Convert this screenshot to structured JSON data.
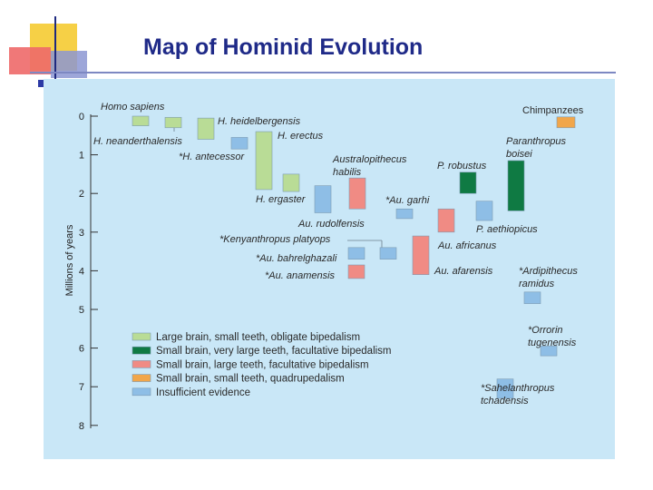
{
  "slide": {
    "title": "Map of Hominid Evolution"
  },
  "chart_data": {
    "type": "diagram",
    "y_axis": {
      "label": "Millions of years",
      "ticks": [
        "0",
        "1",
        "2",
        "3",
        "4",
        "5",
        "6",
        "7",
        "8"
      ]
    },
    "category_colors": {
      "green_light": "#b9dc96",
      "green_dark": "#0f7a43",
      "pink": "#f08b84",
      "orange": "#f1a64a",
      "blue": "#8ebee6"
    },
    "legend": [
      {
        "label": "Large brain, small teeth, obligate bipedalism",
        "color": "green_light"
      },
      {
        "label": "Small brain, very large teeth, facultative bipedalism",
        "color": "green_dark"
      },
      {
        "label": "Small brain, large teeth, facultative bipedalism",
        "color": "pink"
      },
      {
        "label": "Small brain, small teeth, quadrupedalism",
        "color": "orange"
      },
      {
        "label": "Insufficient evidence",
        "color": "blue"
      }
    ],
    "species": [
      {
        "name": "Homo sapiens",
        "color": "green_light",
        "start": 0.25,
        "end": 0.0
      },
      {
        "name": "H. neanderthalensis",
        "color": "green_light",
        "start": 0.3,
        "end": 0.03
      },
      {
        "name": "H. heidelbergensis",
        "color": "green_light",
        "start": 0.6,
        "end": 0.05
      },
      {
        "name": "*H. antecessor",
        "color": "blue",
        "start": 0.85,
        "end": 0.55
      },
      {
        "name": "H. erectus",
        "color": "green_light",
        "start": 1.9,
        "end": 0.4
      },
      {
        "name": "H. ergaster",
        "color": "green_light",
        "start": 1.95,
        "end": 1.5
      },
      {
        "name": "Au. rudolfensis",
        "color": "blue",
        "start": 2.5,
        "end": 1.8
      },
      {
        "name": "Australopithecus habilis",
        "color": "pink",
        "start": 2.4,
        "end": 1.6
      },
      {
        "name": "*Au. garhi",
        "color": "blue",
        "start": 2.65,
        "end": 2.4
      },
      {
        "name": "P. robustus",
        "color": "green_dark",
        "start": 2.0,
        "end": 1.45
      },
      {
        "name": "Paranthropus boisei",
        "color": "green_dark",
        "start": 2.45,
        "end": 1.15
      },
      {
        "name": "P. aethiopicus",
        "color": "blue",
        "start": 2.7,
        "end": 2.2
      },
      {
        "name": "Au. africanus",
        "color": "pink",
        "start": 3.0,
        "end": 2.4
      },
      {
        "name": "*Kenyanthropus platyops",
        "color": "blue",
        "start": 3.7,
        "end": 3.4
      },
      {
        "name": "*Au. bahrelghazali",
        "color": "blue",
        "start": 3.7,
        "end": 3.4
      },
      {
        "name": "Au. afarensis",
        "color": "pink",
        "start": 4.1,
        "end": 3.1
      },
      {
        "name": "*Au. anamensis",
        "color": "pink",
        "start": 4.2,
        "end": 3.85
      },
      {
        "name": "*Ardipithecus ramidus",
        "color": "blue",
        "start": 4.85,
        "end": 4.55
      },
      {
        "name": "*Orrorin tugenensis",
        "color": "blue",
        "start": 6.2,
        "end": 5.95
      },
      {
        "name": "*Sahelanthropus tchadensis",
        "color": "blue",
        "start": 7.3,
        "end": 6.8
      },
      {
        "name": "Chimpanzees",
        "color": "orange",
        "start": 0.3,
        "end": 0.02
      }
    ],
    "labels": {
      "homo_sapiens": "Homo sapiens",
      "h_neanderthalensis": "H. neanderthalensis",
      "h_heidelbergensis": "H. heidelbergensis",
      "h_erectus": "H. erectus",
      "h_antecessor": "*H. antecessor",
      "h_ergaster": "H. ergaster",
      "australopithecus_1": "Australopithecus",
      "australopithecus_2": "habilis",
      "au_rudolfensis": "Au. rudolfensis",
      "au_garhi": "*Au. garhi",
      "p_robustus": "P. robustus",
      "paranthropus_1": "Paranthropus",
      "paranthropus_2": "boisei",
      "p_aethiopicus": "P. aethiopicus",
      "au_africanus": "Au. africanus",
      "kenyanthropus": "*Kenyanthropus platyops",
      "au_bahrelghazali": "*Au. bahrelghazali",
      "au_afarensis": "Au. afarensis",
      "au_anamensis": "*Au. anamensis",
      "ardipithecus_1": "*Ardipithecus",
      "ardipithecus_2": "ramidus",
      "orrorin_1": "*Orrorin",
      "orrorin_2": "tugenensis",
      "sahelanthropus_1": "*Sahelanthropus",
      "sahelanthropus_2": "tchadensis",
      "chimpanzees": "Chimpanzees"
    }
  }
}
